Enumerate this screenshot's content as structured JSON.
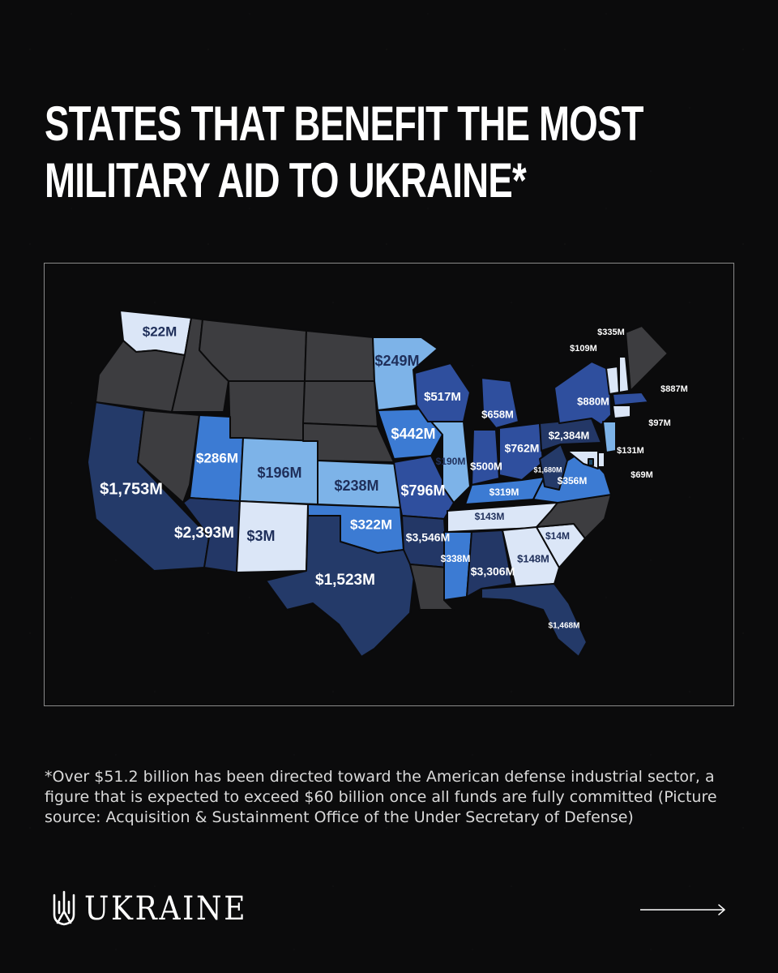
{
  "title": {
    "line1": "STATES THAT BENEFIT THE MOST",
    "line2": "MILITARY AID TO UKRAINE*"
  },
  "map": {
    "states": [
      {
        "id": "WA",
        "label": "$22M",
        "fill": "#dbe6f7"
      },
      {
        "id": "OR",
        "label": "",
        "fill": "#3d3d40"
      },
      {
        "id": "CA",
        "label": "$1,753M",
        "fill": "#243a69"
      },
      {
        "id": "ID",
        "label": "",
        "fill": "#3d3d40"
      },
      {
        "id": "NV",
        "label": "",
        "fill": "#3d3d40"
      },
      {
        "id": "MT",
        "label": "",
        "fill": "#3d3d40"
      },
      {
        "id": "WY",
        "label": "",
        "fill": "#3d3d40"
      },
      {
        "id": "UT",
        "label": "$286M",
        "fill": "#3c7bd3"
      },
      {
        "id": "AZ",
        "label": "$2,393M",
        "fill": "#233766"
      },
      {
        "id": "CO",
        "label": "$196M",
        "fill": "#7db3e8"
      },
      {
        "id": "NM",
        "label": "$3M",
        "fill": "#dbe6f7"
      },
      {
        "id": "ND",
        "label": "",
        "fill": "#3d3d40"
      },
      {
        "id": "SD",
        "label": "",
        "fill": "#3d3d40"
      },
      {
        "id": "NE",
        "label": "",
        "fill": "#3d3d40"
      },
      {
        "id": "KS",
        "label": "$238M",
        "fill": "#7db3e8"
      },
      {
        "id": "OK",
        "label": "$322M",
        "fill": "#3c7bd3"
      },
      {
        "id": "TX",
        "label": "$1,523M",
        "fill": "#243a69"
      },
      {
        "id": "MN",
        "label": "$249M",
        "fill": "#7db3e8"
      },
      {
        "id": "IA",
        "label": "$442M",
        "fill": "#3c7bd3"
      },
      {
        "id": "MO",
        "label": "$796M",
        "fill": "#2f4f9e"
      },
      {
        "id": "AR",
        "label": "$3,546M",
        "fill": "#233766"
      },
      {
        "id": "LA",
        "label": "",
        "fill": "#3d3d40"
      },
      {
        "id": "WI",
        "label": "$517M",
        "fill": "#2f4f9e"
      },
      {
        "id": "IL",
        "label": "$190M",
        "fill": "#7db3e8"
      },
      {
        "id": "MI",
        "label": "$658M",
        "fill": "#2f4f9e"
      },
      {
        "id": "IN",
        "label": "$500M",
        "fill": "#2f4f9e"
      },
      {
        "id": "OH",
        "label": "$762M",
        "fill": "#2f4f9e"
      },
      {
        "id": "KY",
        "label": "$319M",
        "fill": "#3c7bd3"
      },
      {
        "id": "TN",
        "label": "$143M",
        "fill": "#dbe6f7"
      },
      {
        "id": "MS",
        "label": "$338M",
        "fill": "#3c7bd3"
      },
      {
        "id": "AL",
        "label": "$3,306M",
        "fill": "#233766"
      },
      {
        "id": "GA",
        "label": "$148M",
        "fill": "#dbe6f7"
      },
      {
        "id": "FL",
        "label": "$1,468M",
        "fill": "#243a69"
      },
      {
        "id": "SC",
        "label": "$14M",
        "fill": "#dbe6f7"
      },
      {
        "id": "NC",
        "label": "",
        "fill": "#3d3d40"
      },
      {
        "id": "VA",
        "label": "$356M",
        "fill": "#3c7bd3"
      },
      {
        "id": "WV",
        "label": "$1,680M",
        "fill": "#243a69"
      },
      {
        "id": "PA",
        "label": "$2,384M",
        "fill": "#233766"
      },
      {
        "id": "NY",
        "label": "$880M",
        "fill": "#2f4f9e"
      },
      {
        "id": "VT",
        "label": "$109M",
        "fill": "#dbe6f7"
      },
      {
        "id": "NH",
        "label": "$335M",
        "fill": "#dbe6f7"
      },
      {
        "id": "ME",
        "label": "",
        "fill": "#3d3d40"
      },
      {
        "id": "MA",
        "label": "$887M",
        "fill": "#2f4f9e"
      },
      {
        "id": "CT",
        "label": "$97M",
        "fill": "#dbe6f7"
      },
      {
        "id": "NJ",
        "label": "$131M",
        "fill": "#7db3e8"
      },
      {
        "id": "DE",
        "label": "",
        "fill": "#dbe6f7"
      },
      {
        "id": "MD",
        "label": "$69M",
        "fill": "#dbe6f7"
      },
      {
        "id": "DC",
        "label": "",
        "fill": "#1d4a6b"
      }
    ]
  },
  "footnote": "*Over $51.2 billion has been directed toward the American defense industrial sector, a figure that is expected to exceed $60 billion once all funds are fully committed (Picture source: Acquisition & Sustainment Office of the Under Secretary of Defense)",
  "brand": {
    "wordmark": "UKRAINE",
    "emblem_icon": "trident-icon"
  },
  "navigation": {
    "next_icon": "arrow-right-icon"
  },
  "colors": {
    "background": "#0b0b0c",
    "text": "#ffffff",
    "no_data": "#3d3d40",
    "lightest": "#dbe6f7",
    "light": "#7db3e8",
    "medium": "#3c7bd3",
    "dark": "#2f4f9e",
    "darkest": "#233766"
  }
}
